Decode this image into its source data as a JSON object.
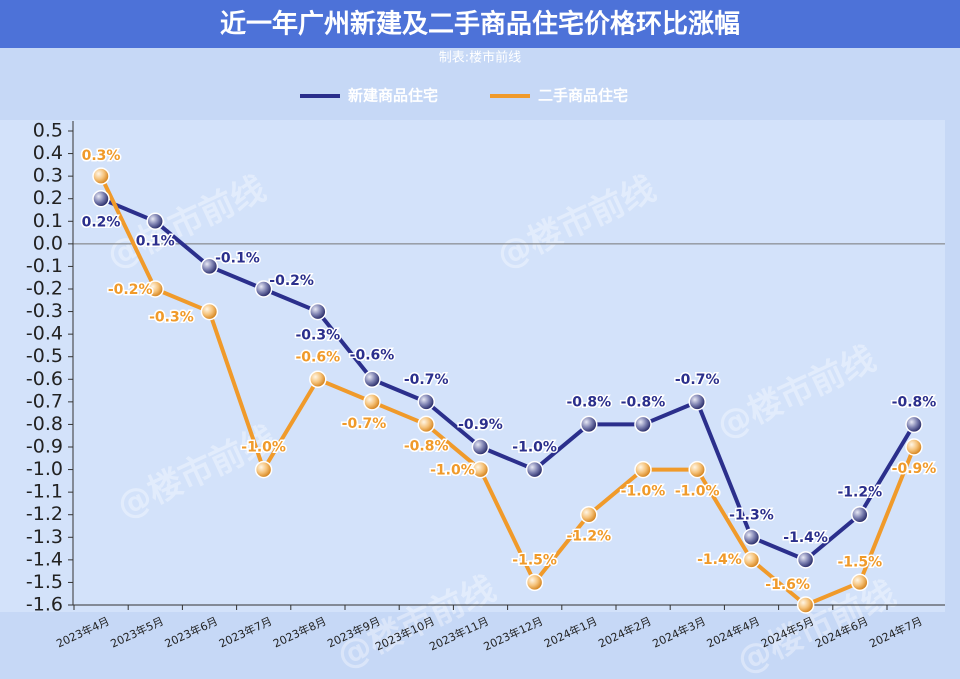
{
  "chart_data": {
    "type": "line",
    "title": "近一年广州新建及二手商品住宅价格环比涨幅",
    "subtitle": "制表:楼市前线",
    "watermark": "@楼市前线",
    "categories": [
      "2023年4月",
      "2023年5月",
      "2023年6月",
      "2023年7月",
      "2023年8月",
      "2023年9月",
      "2023年10月",
      "2023年11月",
      "2023年12月",
      "2024年1月",
      "2024年2月",
      "2024年3月",
      "2024年4月",
      "2024年5月",
      "2024年6月",
      "2024年7月"
    ],
    "series": [
      {
        "name": "新建商品住宅",
        "color": "#2b2f8c",
        "values": [
          0.2,
          0.1,
          -0.1,
          -0.2,
          -0.3,
          -0.6,
          -0.7,
          -0.9,
          -1.0,
          -0.8,
          -0.8,
          -0.7,
          -1.3,
          -1.4,
          -1.2,
          -0.8
        ],
        "value_labels": [
          "0.2%",
          "0.1%",
          "-0.1%",
          "-0.2%",
          "-0.3%",
          "-0.6%",
          "-0.7%",
          "-0.9%",
          "-1.0%",
          "-0.8%",
          "-0.8%",
          "-0.7%",
          "-1.3%",
          "-1.4%",
          "-1.2%",
          "-0.8%"
        ]
      },
      {
        "name": "二手商品住宅",
        "color": "#f09a2a",
        "values": [
          0.3,
          -0.2,
          -0.3,
          -1.0,
          -0.6,
          -0.7,
          -0.8,
          -1.0,
          -1.5,
          -1.2,
          -1.0,
          -1.0,
          -1.4,
          -1.6,
          -1.5,
          -0.9
        ],
        "value_labels": [
          "0.3%",
          "-0.2%",
          "-0.3%",
          "-1.0%",
          "-0.6%",
          "-0.7%",
          "-0.8%",
          "-1.0%",
          "-1.5%",
          "-1.2%",
          "-1.0%",
          "-1.0%",
          "-1.4%",
          "-1.6%",
          "-1.5%",
          "-0.9%"
        ]
      }
    ],
    "ylim": [
      -1.6,
      0.5
    ],
    "yticks": [
      0.5,
      0.4,
      0.3,
      0.2,
      0.1,
      {
        "value": 0,
        "label": "0.0"
      },
      -0.1,
      -0.2,
      -0.3,
      -0.4,
      -0.5,
      -0.6,
      -0.7,
      -0.8,
      -0.9,
      {
        "value": -1,
        "label": "-1.0"
      },
      -1.1,
      -1.2,
      -1.3,
      -1.4,
      -1.5,
      -1.6
    ]
  }
}
